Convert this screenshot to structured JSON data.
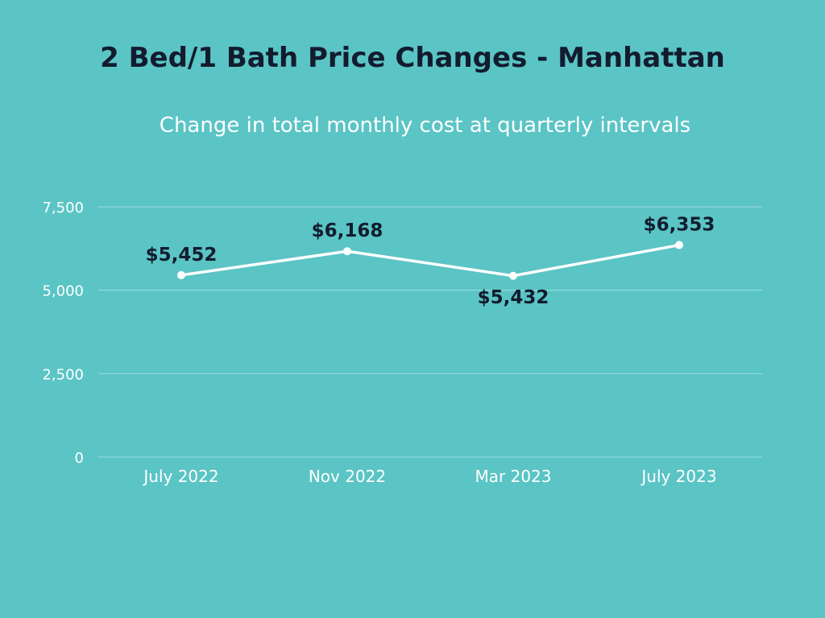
{
  "colors": {
    "background": "#5bc4c5",
    "title": "#121c2e",
    "line": "#ffffff",
    "grid": "#9edede"
  },
  "chart_data": {
    "type": "line",
    "title": "2 Bed/1 Bath Price Changes - Manhattan",
    "subtitle": "Change in total monthly cost at quarterly intervals",
    "xlabel": "",
    "ylabel": "",
    "categories": [
      "July 2022",
      "Nov 2022",
      "Mar 2023",
      "July 2023"
    ],
    "series": [
      {
        "name": "Total monthly cost",
        "values": [
          5452,
          6168,
          5432,
          6353
        ],
        "labels": [
          "$5,452",
          "$6,168",
          "$5,432",
          "$6,353"
        ],
        "label_positions": [
          "above",
          "above",
          "below",
          "above"
        ]
      }
    ],
    "ylim": [
      0,
      7500
    ],
    "yticks": [
      0,
      2500,
      5000,
      7500
    ],
    "ytick_labels": [
      "0",
      "2,500",
      "5,000",
      "7,500"
    ],
    "grid": true,
    "legend": "none"
  }
}
